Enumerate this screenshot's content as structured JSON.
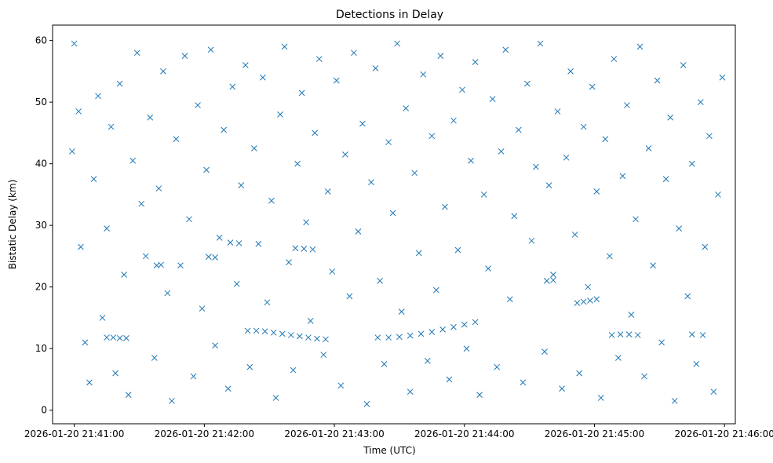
{
  "chart_data": {
    "type": "scatter",
    "title": "Detections in Delay",
    "xlabel": "Time (UTC)",
    "ylabel": "Bistatic Delay (km)",
    "marker": "x",
    "color": "#1f77b4",
    "grid": false,
    "xlim": [
      "2026-01-20 21:40:50",
      "2026-01-20 21:46:05"
    ],
    "ylim": [
      -2.2,
      62.5
    ],
    "x_ticks": [
      "2026-01-20 21:41:00",
      "2026-01-20 21:42:00",
      "2026-01-20 21:43:00",
      "2026-01-20 21:44:00",
      "2026-01-20 21:45:00",
      "2026-01-20 21:46:00"
    ],
    "y_ticks": [
      "0",
      "10",
      "20",
      "30",
      "40",
      "50",
      "60"
    ],
    "y_tick_values": [
      0,
      10,
      20,
      30,
      40,
      50,
      60
    ],
    "series": [
      {
        "points": [
          [
            "2026-01-20 21:40:59",
            42.0
          ],
          [
            "2026-01-20 21:41:00",
            59.5
          ],
          [
            "2026-01-20 21:41:02",
            48.5
          ],
          [
            "2026-01-20 21:41:03",
            26.5
          ],
          [
            "2026-01-20 21:41:05",
            11.0
          ],
          [
            "2026-01-20 21:41:07",
            4.5
          ],
          [
            "2026-01-20 21:41:09",
            37.5
          ],
          [
            "2026-01-20 21:41:11",
            51.0
          ],
          [
            "2026-01-20 21:41:13",
            15.0
          ],
          [
            "2026-01-20 21:41:15",
            29.5
          ],
          [
            "2026-01-20 21:41:17",
            46.0
          ],
          [
            "2026-01-20 21:41:19",
            6.0
          ],
          [
            "2026-01-20 21:41:21",
            53.0
          ],
          [
            "2026-01-20 21:41:23",
            22.0
          ],
          [
            "2026-01-20 21:41:25",
            2.5
          ],
          [
            "2026-01-20 21:41:27",
            40.5
          ],
          [
            "2026-01-20 21:41:29",
            58.0
          ],
          [
            "2026-01-20 21:41:31",
            33.5
          ],
          [
            "2026-01-20 21:41:33",
            25.0
          ],
          [
            "2026-01-20 21:41:35",
            47.5
          ],
          [
            "2026-01-20 21:41:37",
            8.5
          ],
          [
            "2026-01-20 21:41:39",
            36.0
          ],
          [
            "2026-01-20 21:41:41",
            55.0
          ],
          [
            "2026-01-20 21:41:43",
            19.0
          ],
          [
            "2026-01-20 21:41:45",
            1.5
          ],
          [
            "2026-01-20 21:41:47",
            44.0
          ],
          [
            "2026-01-20 21:41:49",
            23.5
          ],
          [
            "2026-01-20 21:41:51",
            57.5
          ],
          [
            "2026-01-20 21:41:53",
            31.0
          ],
          [
            "2026-01-20 21:41:55",
            5.5
          ],
          [
            "2026-01-20 21:41:57",
            49.5
          ],
          [
            "2026-01-20 21:41:59",
            16.5
          ],
          [
            "2026-01-20 21:42:01",
            39.0
          ],
          [
            "2026-01-20 21:42:03",
            58.5
          ],
          [
            "2026-01-20 21:42:05",
            10.5
          ],
          [
            "2026-01-20 21:42:07",
            28.0
          ],
          [
            "2026-01-20 21:42:09",
            45.5
          ],
          [
            "2026-01-20 21:42:11",
            3.5
          ],
          [
            "2026-01-20 21:42:13",
            52.5
          ],
          [
            "2026-01-20 21:42:15",
            20.5
          ],
          [
            "2026-01-20 21:42:17",
            36.5
          ],
          [
            "2026-01-20 21:42:19",
            56.0
          ],
          [
            "2026-01-20 21:42:21",
            7.0
          ],
          [
            "2026-01-20 21:42:23",
            42.5
          ],
          [
            "2026-01-20 21:42:25",
            27.0
          ],
          [
            "2026-01-20 21:42:27",
            54.0
          ],
          [
            "2026-01-20 21:42:29",
            17.5
          ],
          [
            "2026-01-20 21:42:31",
            34.0
          ],
          [
            "2026-01-20 21:42:33",
            2.0
          ],
          [
            "2026-01-20 21:42:35",
            48.0
          ],
          [
            "2026-01-20 21:42:37",
            59.0
          ],
          [
            "2026-01-20 21:42:39",
            24.0
          ],
          [
            "2026-01-20 21:42:41",
            6.5
          ],
          [
            "2026-01-20 21:42:43",
            40.0
          ],
          [
            "2026-01-20 21:42:45",
            51.5
          ],
          [
            "2026-01-20 21:42:47",
            30.5
          ],
          [
            "2026-01-20 21:42:49",
            14.5
          ],
          [
            "2026-01-20 21:42:51",
            45.0
          ],
          [
            "2026-01-20 21:42:53",
            57.0
          ],
          [
            "2026-01-20 21:42:55",
            9.0
          ],
          [
            "2026-01-20 21:42:57",
            35.5
          ],
          [
            "2026-01-20 21:42:59",
            22.5
          ],
          [
            "2026-01-20 21:43:01",
            53.5
          ],
          [
            "2026-01-20 21:43:03",
            4.0
          ],
          [
            "2026-01-20 21:43:05",
            41.5
          ],
          [
            "2026-01-20 21:43:07",
            18.5
          ],
          [
            "2026-01-20 21:43:09",
            58.0
          ],
          [
            "2026-01-20 21:43:11",
            29.0
          ],
          [
            "2026-01-20 21:43:13",
            46.5
          ],
          [
            "2026-01-20 21:43:15",
            1.0
          ],
          [
            "2026-01-20 21:43:17",
            37.0
          ],
          [
            "2026-01-20 21:43:19",
            55.5
          ],
          [
            "2026-01-20 21:43:21",
            21.0
          ],
          [
            "2026-01-20 21:43:23",
            7.5
          ],
          [
            "2026-01-20 21:43:25",
            43.5
          ],
          [
            "2026-01-20 21:43:27",
            32.0
          ],
          [
            "2026-01-20 21:43:29",
            59.5
          ],
          [
            "2026-01-20 21:43:31",
            16.0
          ],
          [
            "2026-01-20 21:43:33",
            49.0
          ],
          [
            "2026-01-20 21:43:35",
            3.0
          ],
          [
            "2026-01-20 21:43:37",
            38.5
          ],
          [
            "2026-01-20 21:43:39",
            25.5
          ],
          [
            "2026-01-20 21:43:41",
            54.5
          ],
          [
            "2026-01-20 21:43:43",
            8.0
          ],
          [
            "2026-01-20 21:43:45",
            44.5
          ],
          [
            "2026-01-20 21:43:47",
            19.5
          ],
          [
            "2026-01-20 21:43:49",
            57.5
          ],
          [
            "2026-01-20 21:43:51",
            33.0
          ],
          [
            "2026-01-20 21:43:53",
            5.0
          ],
          [
            "2026-01-20 21:43:55",
            47.0
          ],
          [
            "2026-01-20 21:43:57",
            26.0
          ],
          [
            "2026-01-20 21:43:59",
            52.0
          ],
          [
            "2026-01-20 21:44:01",
            10.0
          ],
          [
            "2026-01-20 21:44:03",
            40.5
          ],
          [
            "2026-01-20 21:44:05",
            56.5
          ],
          [
            "2026-01-20 21:44:07",
            2.5
          ],
          [
            "2026-01-20 21:44:09",
            35.0
          ],
          [
            "2026-01-20 21:44:11",
            23.0
          ],
          [
            "2026-01-20 21:44:13",
            50.5
          ],
          [
            "2026-01-20 21:44:15",
            7.0
          ],
          [
            "2026-01-20 21:44:17",
            42.0
          ],
          [
            "2026-01-20 21:44:19",
            58.5
          ],
          [
            "2026-01-20 21:44:21",
            18.0
          ],
          [
            "2026-01-20 21:44:23",
            31.5
          ],
          [
            "2026-01-20 21:44:25",
            45.5
          ],
          [
            "2026-01-20 21:44:27",
            4.5
          ],
          [
            "2026-01-20 21:44:29",
            53.0
          ],
          [
            "2026-01-20 21:44:31",
            27.5
          ],
          [
            "2026-01-20 21:44:33",
            39.5
          ],
          [
            "2026-01-20 21:44:35",
            59.5
          ],
          [
            "2026-01-20 21:44:37",
            9.5
          ],
          [
            "2026-01-20 21:44:39",
            36.5
          ],
          [
            "2026-01-20 21:44:41",
            22.0
          ],
          [
            "2026-01-20 21:44:43",
            48.5
          ],
          [
            "2026-01-20 21:44:45",
            3.5
          ],
          [
            "2026-01-20 21:44:47",
            41.0
          ],
          [
            "2026-01-20 21:44:49",
            55.0
          ],
          [
            "2026-01-20 21:44:51",
            28.5
          ],
          [
            "2026-01-20 21:44:53",
            6.0
          ],
          [
            "2026-01-20 21:44:55",
            46.0
          ],
          [
            "2026-01-20 21:44:57",
            20.0
          ],
          [
            "2026-01-20 21:44:59",
            52.5
          ],
          [
            "2026-01-20 21:45:01",
            35.5
          ],
          [
            "2026-01-20 21:45:03",
            2.0
          ],
          [
            "2026-01-20 21:45:05",
            44.0
          ],
          [
            "2026-01-20 21:45:07",
            25.0
          ],
          [
            "2026-01-20 21:45:09",
            57.0
          ],
          [
            "2026-01-20 21:45:11",
            8.5
          ],
          [
            "2026-01-20 21:45:13",
            38.0
          ],
          [
            "2026-01-20 21:45:15",
            49.5
          ],
          [
            "2026-01-20 21:45:17",
            15.5
          ],
          [
            "2026-01-20 21:45:19",
            31.0
          ],
          [
            "2026-01-20 21:45:21",
            59.0
          ],
          [
            "2026-01-20 21:45:23",
            5.5
          ],
          [
            "2026-01-20 21:45:25",
            42.5
          ],
          [
            "2026-01-20 21:45:27",
            23.5
          ],
          [
            "2026-01-20 21:45:29",
            53.5
          ],
          [
            "2026-01-20 21:45:31",
            11.0
          ],
          [
            "2026-01-20 21:45:33",
            37.5
          ],
          [
            "2026-01-20 21:45:35",
            47.5
          ],
          [
            "2026-01-20 21:45:37",
            1.5
          ],
          [
            "2026-01-20 21:45:39",
            29.5
          ],
          [
            "2026-01-20 21:45:41",
            56.0
          ],
          [
            "2026-01-20 21:45:43",
            18.5
          ],
          [
            "2026-01-20 21:45:45",
            40.0
          ],
          [
            "2026-01-20 21:45:47",
            7.5
          ],
          [
            "2026-01-20 21:45:49",
            50.0
          ],
          [
            "2026-01-20 21:45:51",
            26.5
          ],
          [
            "2026-01-20 21:45:53",
            44.5
          ],
          [
            "2026-01-20 21:45:55",
            3.0
          ],
          [
            "2026-01-20 21:45:57",
            35.0
          ],
          [
            "2026-01-20 21:45:59",
            54.0
          ],
          [
            "2026-01-20 21:42:20",
            12.9
          ],
          [
            "2026-01-20 21:42:24",
            12.9
          ],
          [
            "2026-01-20 21:42:28",
            12.8
          ],
          [
            "2026-01-20 21:42:32",
            12.6
          ],
          [
            "2026-01-20 21:42:36",
            12.4
          ],
          [
            "2026-01-20 21:42:40",
            12.2
          ],
          [
            "2026-01-20 21:42:44",
            12.0
          ],
          [
            "2026-01-20 21:42:48",
            11.8
          ],
          [
            "2026-01-20 21:42:52",
            11.6
          ],
          [
            "2026-01-20 21:42:56",
            11.5
          ],
          [
            "2026-01-20 21:43:20",
            11.8
          ],
          [
            "2026-01-20 21:43:25",
            11.8
          ],
          [
            "2026-01-20 21:43:30",
            11.9
          ],
          [
            "2026-01-20 21:43:35",
            12.1
          ],
          [
            "2026-01-20 21:43:40",
            12.4
          ],
          [
            "2026-01-20 21:43:45",
            12.7
          ],
          [
            "2026-01-20 21:43:50",
            13.1
          ],
          [
            "2026-01-20 21:43:55",
            13.5
          ],
          [
            "2026-01-20 21:44:00",
            13.9
          ],
          [
            "2026-01-20 21:44:05",
            14.3
          ],
          [
            "2026-01-20 21:41:15",
            11.8
          ],
          [
            "2026-01-20 21:41:18",
            11.8
          ],
          [
            "2026-01-20 21:41:21",
            11.7
          ],
          [
            "2026-01-20 21:41:24",
            11.7
          ],
          [
            "2026-01-20 21:44:52",
            17.4
          ],
          [
            "2026-01-20 21:44:55",
            17.6
          ],
          [
            "2026-01-20 21:44:58",
            17.8
          ],
          [
            "2026-01-20 21:45:01",
            18.0
          ],
          [
            "2026-01-20 21:45:08",
            12.2
          ],
          [
            "2026-01-20 21:45:12",
            12.3
          ],
          [
            "2026-01-20 21:45:16",
            12.3
          ],
          [
            "2026-01-20 21:45:20",
            12.2
          ],
          [
            "2026-01-20 21:45:45",
            12.3
          ],
          [
            "2026-01-20 21:45:50",
            12.2
          ],
          [
            "2026-01-20 21:42:42",
            26.3
          ],
          [
            "2026-01-20 21:42:46",
            26.2
          ],
          [
            "2026-01-20 21:42:50",
            26.1
          ],
          [
            "2026-01-20 21:42:12",
            27.2
          ],
          [
            "2026-01-20 21:42:16",
            27.1
          ],
          [
            "2026-01-20 21:42:02",
            24.9
          ],
          [
            "2026-01-20 21:42:05",
            24.8
          ],
          [
            "2026-01-20 21:41:38",
            23.5
          ],
          [
            "2026-01-20 21:41:40",
            23.6
          ],
          [
            "2026-01-20 21:44:38",
            21.0
          ],
          [
            "2026-01-20 21:44:41",
            21.1
          ]
        ]
      }
    ]
  }
}
